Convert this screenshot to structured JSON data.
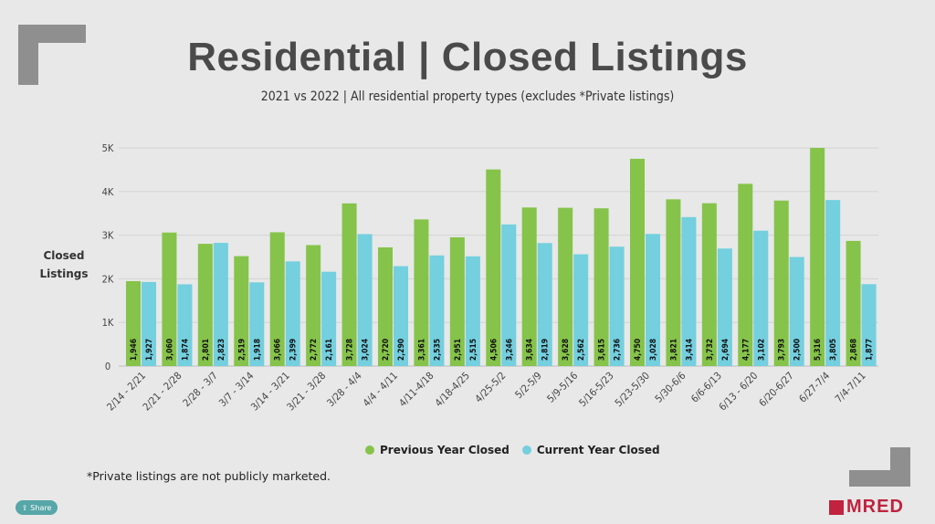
{
  "header": {
    "title": "Residential | Closed Listings",
    "subtitle": "2021 vs 2022 | All residential property types (excludes *Private listings)"
  },
  "footnote": "*Private listings are not publicly marketed.",
  "share_button": {
    "label": "Share",
    "icon": "share-icon"
  },
  "logo": {
    "text": "MRED"
  },
  "colors": {
    "previous": "#86c34a",
    "current": "#74cfdf",
    "background": "#e7e8e7"
  },
  "chart_data": {
    "type": "bar",
    "title": "Residential | Closed Listings",
    "ylabel": "Closed Listings",
    "xlabel": "",
    "ylim": [
      0,
      5000
    ],
    "yticks": [
      "0",
      "1K",
      "2K",
      "3K",
      "4K",
      "5K"
    ],
    "grid": true,
    "legend_position": "bottom",
    "categories": [
      "2/14 - 2/21",
      "2/21 - 2/28",
      "2/28 - 3/7",
      "3/7 - 3/14",
      "3/14 - 3/21",
      "3/21 - 3/28",
      "3/28 - 4/4",
      "4/4 - 4/11",
      "4/11-4/18",
      "4/18-4/25",
      "4/25-5/2",
      "5/2-5/9",
      "5/9-5/16",
      "5/16-5/23",
      "5/23-5/30",
      "5/30-6/6",
      "6/6-6/13",
      "6/13 - 6/20",
      "6/20-6/27",
      "6/27-7/4",
      "7/4-7/11"
    ],
    "series": [
      {
        "name": "Previous Year Closed",
        "values": [
          1946,
          3060,
          2801,
          2519,
          3066,
          2772,
          3728,
          2720,
          3361,
          2951,
          4506,
          3634,
          3628,
          3615,
          4750,
          3821,
          3732,
          4177,
          3793,
          5316,
          2868
        ]
      },
      {
        "name": "Current Year Closed",
        "values": [
          1927,
          1874,
          2823,
          1918,
          2399,
          2161,
          3024,
          2290,
          2535,
          2515,
          3246,
          2819,
          2562,
          2736,
          3028,
          3414,
          2694,
          3102,
          2500,
          3805,
          1877
        ]
      }
    ]
  }
}
